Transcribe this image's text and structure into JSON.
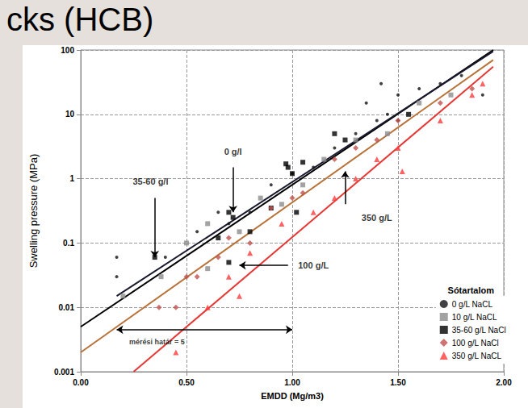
{
  "chart_data": {
    "type": "scatter",
    "title": "cks (HCB)",
    "x_label": "EMDD (Mg/m3)",
    "y_label": "Swelling pressure (MPa)",
    "log": "y",
    "grid": true,
    "legend": "lower right",
    "legend_title": "Sótartalom",
    "xlim": [
      0,
      2
    ],
    "xticks": [
      {
        "value": 0,
        "label": "0.00"
      },
      {
        "value": 0.5,
        "label": "0.50"
      },
      {
        "value": 1,
        "label": "1.00"
      },
      {
        "value": 1.5,
        "label": "1.50"
      },
      {
        "value": 2,
        "label": "2.00"
      }
    ],
    "ylim": [
      0.001,
      100
    ],
    "yticks": [
      0.001,
      0.01,
      0.1,
      1,
      10,
      100
    ],
    "series": [
      {
        "name": "0 g/L NaCL",
        "color": "#111111",
        "marker": "circle",
        "values": [
          [
            0.17,
            0.06
          ],
          [
            0.17,
            0.03
          ],
          [
            0.4,
            0.06
          ],
          [
            0.55,
            0.15
          ],
          [
            0.65,
            0.3
          ],
          [
            0.7,
            0.2
          ],
          [
            0.8,
            0.3
          ],
          [
            0.9,
            0.8
          ],
          [
            1.0,
            1.2
          ],
          [
            1.1,
            1.5
          ],
          [
            1.2,
            3
          ],
          [
            1.3,
            5
          ],
          [
            1.4,
            8
          ],
          [
            1.45,
            10
          ],
          [
            1.5,
            20
          ],
          [
            1.6,
            25
          ],
          [
            1.7,
            30
          ],
          [
            1.8,
            40
          ],
          [
            1.9,
            20
          ],
          [
            1.35,
            15
          ],
          [
            1.42,
            30
          ],
          [
            1.5,
            8
          ]
        ]
      },
      {
        "name": "10 g/L NaCL",
        "color": "#8c8c8c",
        "marker": "square",
        "values": [
          [
            0.2,
            0.015
          ],
          [
            0.38,
            0.03
          ],
          [
            0.5,
            0.1
          ],
          [
            0.6,
            0.2
          ],
          [
            0.75,
            0.15
          ],
          [
            0.85,
            0.5
          ],
          [
            0.95,
            0.4
          ],
          [
            1.05,
            0.8
          ],
          [
            1.15,
            2
          ],
          [
            1.3,
            4
          ],
          [
            1.45,
            5
          ],
          [
            1.6,
            15
          ],
          [
            1.75,
            20
          ],
          [
            0.6,
            0.04
          ]
        ]
      },
      {
        "name": "35-60 g/L NaCl",
        "color": "#000000",
        "marker": "square",
        "values": [
          [
            0.35,
            0.06
          ],
          [
            0.65,
            0.12
          ],
          [
            0.7,
            0.3
          ],
          [
            0.72,
            0.25
          ],
          [
            0.8,
            0.15
          ],
          [
            0.9,
            0.35
          ],
          [
            0.97,
            1.7
          ],
          [
            0.98,
            1.5
          ],
          [
            1.0,
            1.2
          ],
          [
            1.02,
            0.3
          ],
          [
            1.05,
            1.8
          ],
          [
            1.2,
            5
          ],
          [
            1.25,
            4
          ],
          [
            1.55,
            10
          ],
          [
            0.7,
            0.05
          ]
        ]
      },
      {
        "name": "100 g/L NaCl",
        "color": "#c0504d",
        "marker": "diamond",
        "values": [
          [
            0.5,
            0.03
          ],
          [
            0.55,
            0.03
          ],
          [
            0.65,
            0.06
          ],
          [
            0.7,
            0.12
          ],
          [
            0.8,
            0.1
          ],
          [
            0.9,
            0.35
          ],
          [
            1.0,
            0.5
          ],
          [
            1.05,
            0.6
          ],
          [
            1.2,
            2
          ],
          [
            1.3,
            3
          ],
          [
            1.4,
            4
          ],
          [
            1.5,
            8
          ],
          [
            1.7,
            15
          ],
          [
            1.85,
            25
          ],
          [
            0.45,
            0.01
          ],
          [
            0.37,
            0.01
          ]
        ]
      },
      {
        "name": "350 g/L NaCL",
        "color": "#ff3b3b",
        "marker": "triangle",
        "values": [
          [
            0.45,
            0.002
          ],
          [
            0.6,
            0.01
          ],
          [
            0.7,
            0.03
          ],
          [
            0.75,
            0.015
          ],
          [
            0.8,
            0.07
          ],
          [
            0.95,
            0.2
          ],
          [
            1.1,
            0.3
          ],
          [
            1.2,
            0.5
          ],
          [
            1.3,
            1
          ],
          [
            1.4,
            2
          ],
          [
            1.5,
            3
          ],
          [
            1.52,
            1.3
          ],
          [
            1.7,
            8
          ],
          [
            1.85,
            20
          ],
          [
            1.9,
            30
          ]
        ]
      }
    ],
    "fits": [
      {
        "color": "#000000",
        "values": [
          [
            0,
            0.005
          ],
          [
            1.95,
            100
          ]
        ]
      },
      {
        "color": "#1a1a2e",
        "values": [
          [
            0.17,
            0.015
          ],
          [
            1.95,
            95
          ]
        ]
      },
      {
        "color": "#b8733a",
        "values": [
          [
            0,
            0.002
          ],
          [
            1.95,
            70
          ]
        ]
      },
      {
        "color": "#e53935",
        "values": [
          [
            0.25,
            0.001
          ],
          [
            1.95,
            55
          ]
        ]
      }
    ],
    "annotations": [
      {
        "text": "0 g/l",
        "x": 0.72,
        "y": 2.6,
        "line_style": "arrow",
        "arrow": [
          [
            0.72,
            1.5
          ],
          [
            0.72,
            0.3
          ]
        ]
      },
      {
        "text": "35-60 g/l",
        "x": 0.33,
        "y": 0.9,
        "line_style": "arrow",
        "arrow": [
          [
            0.35,
            0.5
          ],
          [
            0.35,
            0.06
          ]
        ]
      },
      {
        "text": "100 g/L",
        "x": 1.1,
        "y": 0.045,
        "line_style": "arrow",
        "arrow": [
          [
            0.98,
            0.045
          ],
          [
            0.75,
            0.045
          ]
        ]
      },
      {
        "text": "350 g/L",
        "x": 1.4,
        "y": 0.25,
        "line_style": "arrow",
        "arrow": [
          [
            1.25,
            0.4
          ],
          [
            1.25,
            1.3
          ]
        ]
      },
      {
        "text": "mérési határ = 5",
        "x": 0.36,
        "y": 0.0029,
        "line_style": "double_arrow",
        "arrow": [
          [
            0.17,
            0.0045
          ],
          [
            1.0,
            0.0045
          ]
        ]
      }
    ]
  }
}
